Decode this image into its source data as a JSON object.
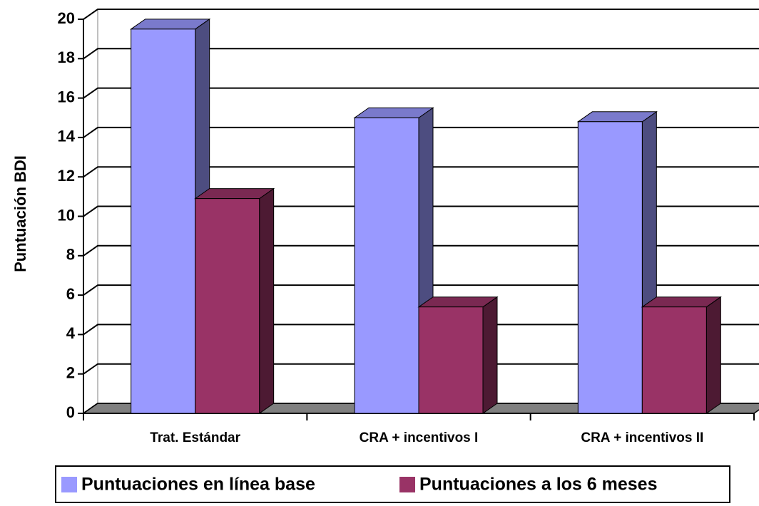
{
  "chart_data": {
    "type": "bar",
    "y_axis_label": "Puntuación BDI",
    "categories": [
      "Trat. Estándar",
      "CRA + incentivos I",
      "CRA + incentivos II"
    ],
    "series": [
      {
        "name": "Puntuaciones en línea base",
        "color": "#9999ff",
        "values": [
          19.5,
          15.0,
          14.8
        ]
      },
      {
        "name": "Puntuaciones a los 6 meses",
        "color": "#993366",
        "values": [
          10.9,
          5.4,
          5.4
        ]
      }
    ],
    "ylim": [
      0,
      20
    ],
    "yticks": [
      0,
      2,
      4,
      6,
      8,
      10,
      12,
      14,
      16,
      18,
      20
    ],
    "grid": true,
    "legend": "bottom"
  }
}
